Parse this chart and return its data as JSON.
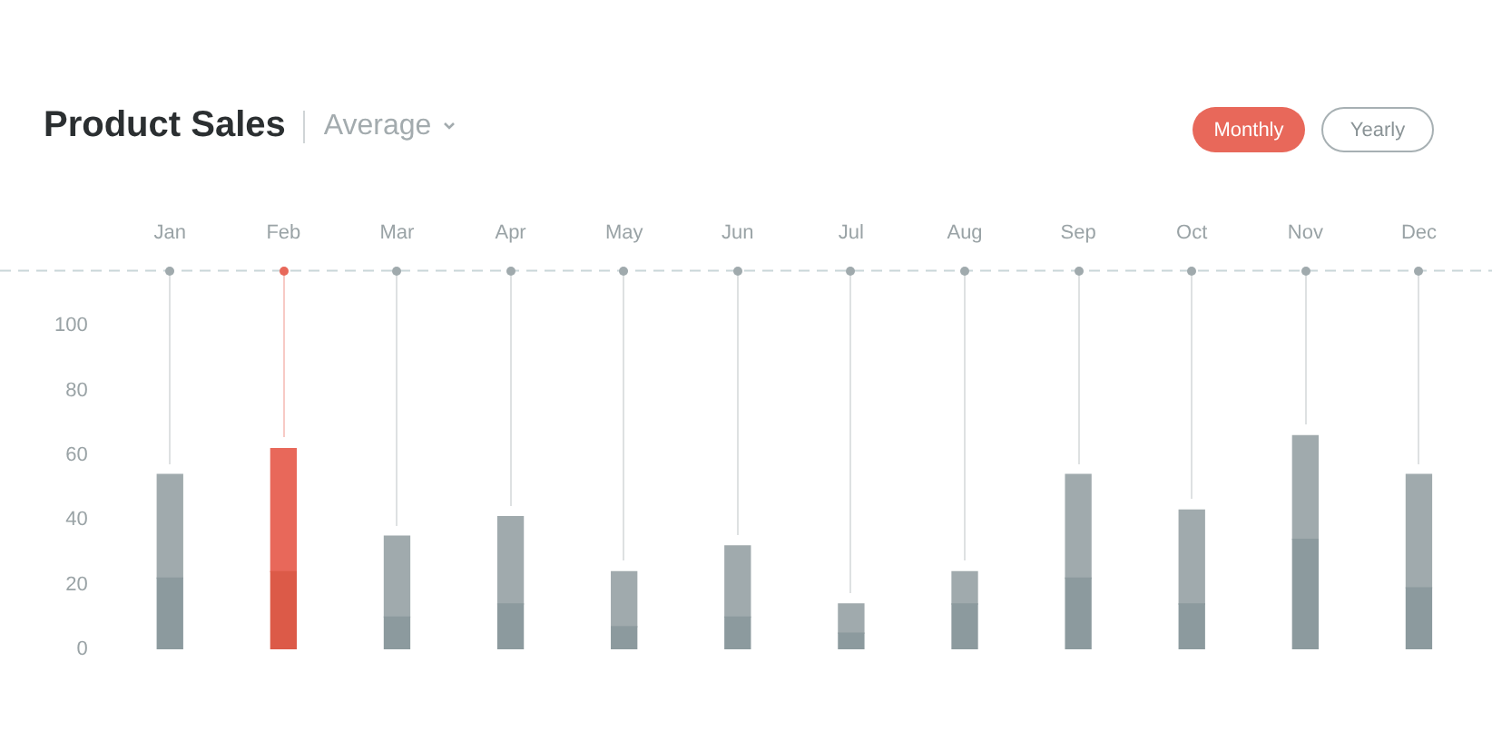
{
  "chart_data": {
    "type": "bar",
    "title": "Product Sales",
    "subtitle": "Average",
    "annotations": [
      "Monthly",
      "Yearly"
    ],
    "categories": [
      "Jan",
      "Feb",
      "Mar",
      "Apr",
      "May",
      "Jun",
      "Jul",
      "Aug",
      "Sep",
      "Oct",
      "Nov",
      "Dec"
    ],
    "stacked": true,
    "series": [
      {
        "colors": [
          "#8c9a9e",
          "#dc5a48",
          "#8c9a9e",
          "#8c9a9e",
          "#8c9a9e",
          "#8c9a9e",
          "#8c9a9e",
          "#8c9a9e",
          "#8c9a9e",
          "#8c9a9e",
          "#8c9a9e",
          "#8c9a9e"
        ],
        "values": [
          22,
          24,
          10,
          14,
          7,
          10,
          5,
          14,
          22,
          14,
          34,
          19
        ]
      },
      {
        "colors": [
          "#a0aaad",
          "#e8685a",
          "#a0aaad",
          "#a0aaad",
          "#a0aaad",
          "#a0aaad",
          "#a0aaad",
          "#a0aaad",
          "#a0aaad",
          "#a0aaad",
          "#a0aaad",
          "#a0aaad"
        ],
        "values": [
          32,
          38,
          25,
          27,
          17,
          22,
          9,
          10,
          32,
          29,
          32,
          35
        ]
      }
    ],
    "ylim": [
      0,
      117
    ],
    "yticks": [
      0,
      20,
      40,
      60,
      80,
      100
    ],
    "ref_lines": [
      {
        "axis": "y",
        "value": 117,
        "color": "#c9d6d8",
        "line_style": "dashed"
      }
    ],
    "grid": false,
    "legend": false
  }
}
